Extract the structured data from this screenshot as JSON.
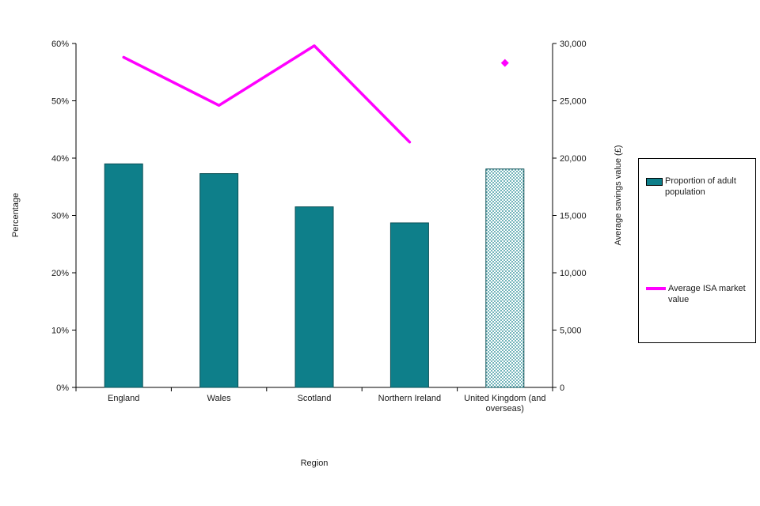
{
  "chart_data": {
    "type": "combo-bar-line",
    "title": "",
    "xlabel": "Region",
    "ylabel_left": "Percentage",
    "ylabel_right": "Average savings value (£)",
    "categories": [
      "England",
      "Wales",
      "Scotland",
      "Northern Ireland",
      "United Kingdom (and\noverseas)"
    ],
    "left_axis": {
      "min": 0,
      "max": 60,
      "step": 10
    },
    "right_axis": {
      "min": 0,
      "max": 30000,
      "step": 5000
    },
    "left_ticks": [
      "0%",
      "10%",
      "20%",
      "30%",
      "40%",
      "50%",
      "60%"
    ],
    "right_ticks": [
      "0",
      "5,000",
      "10,000",
      "15,000",
      "20,000",
      "25,000",
      "30,000"
    ],
    "series": [
      {
        "name": "Proportion of adult population",
        "type": "bar",
        "axis": "left",
        "values": [
          39.0,
          37.3,
          31.5,
          28.7,
          38.1
        ],
        "color": "#0e7f8a",
        "border_color": "#0a4f55",
        "last_bar_pattern": true
      },
      {
        "name": "Average ISA market value",
        "type": "line",
        "axis": "right",
        "values": [
          28800,
          24600,
          29800,
          21400,
          28300
        ],
        "color": "#ff00ff",
        "last_point_detached": true
      }
    ],
    "legend_position": "right",
    "grid": false
  }
}
